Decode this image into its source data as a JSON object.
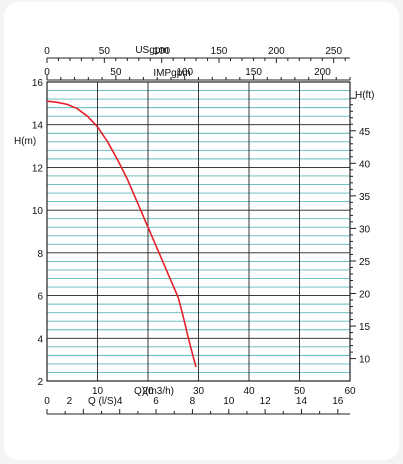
{
  "chart_data": {
    "type": "line",
    "title": "",
    "series": [
      {
        "color": "#e8202a",
        "points": [
          [
            0,
            15.1
          ],
          [
            2,
            15.05
          ],
          [
            4,
            14.95
          ],
          [
            6,
            14.75
          ],
          [
            8,
            14.4
          ],
          [
            10,
            13.9
          ],
          [
            12,
            13.2
          ],
          [
            14,
            12.35
          ],
          [
            16,
            11.4
          ],
          [
            18,
            10.3
          ],
          [
            20,
            9.2
          ],
          [
            22,
            8.1
          ],
          [
            24,
            7.0
          ],
          [
            26,
            5.9
          ],
          [
            27,
            5.0
          ],
          [
            28,
            4.0
          ],
          [
            29,
            3.1
          ],
          [
            29.5,
            2.65
          ]
        ]
      }
    ],
    "axes": {
      "q_m3h": {
        "label": "Q)(m3/h)",
        "ticks": [
          "10",
          "20",
          "30",
          "40",
          "50",
          "60"
        ],
        "lim": [
          0,
          60
        ]
      },
      "q_ls": {
        "label": "Q (l/S)",
        "ticks": [
          "0",
          "2",
          "4",
          "6",
          "8",
          "10",
          "12",
          "14",
          "16"
        ],
        "lim": [
          0,
          16.67
        ]
      },
      "usgpm": {
        "label": "USgpm",
        "ticks": [
          "0",
          "50",
          "100",
          "150",
          "200",
          "250"
        ],
        "lim": [
          0,
          264.2
        ]
      },
      "impgpm": {
        "label": "IMPgpm",
        "ticks": [
          "0",
          "50",
          "100",
          "150",
          "200"
        ],
        "lim": [
          0,
          220
        ]
      },
      "h_m": {
        "label": "H(m)",
        "ticks": [
          "2",
          "4",
          "6",
          "8",
          "10",
          "12",
          "14",
          "16"
        ],
        "lim": [
          2,
          16
        ]
      },
      "h_ft": {
        "label": "H(ft)",
        "ticks": [
          "10",
          "15",
          "20",
          "25",
          "30",
          "35",
          "40",
          "45"
        ],
        "lim": [
          6.56,
          52.49
        ]
      }
    },
    "grid": true,
    "grid_colors": {
      "major": "#222222",
      "minor": "#5bb8b8"
    }
  }
}
